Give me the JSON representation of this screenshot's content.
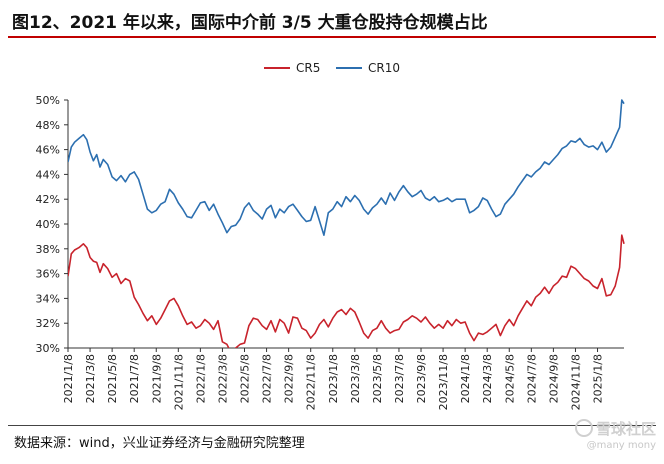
{
  "title": "图12、2021 年以来，国际中介前 3/5 大重仓股持仓规模占比",
  "source": "数据来源：wind，兴业证券经济与金融研究院整理",
  "watermark": {
    "logo_text": "雪球社区",
    "sub_text": "@many mony"
  },
  "colors": {
    "cr5": "#c8232c",
    "cr10": "#2c6fb0",
    "title_rule": "#c00000"
  },
  "chart_data": {
    "type": "line",
    "title": "",
    "xlabel": "",
    "ylabel": "",
    "ylim": [
      30,
      50
    ],
    "y_ticks": [
      "30%",
      "32%",
      "34%",
      "36%",
      "38%",
      "40%",
      "42%",
      "44%",
      "46%",
      "48%",
      "50%"
    ],
    "x_tick_labels": [
      "2021/1/8",
      "2021/3/8",
      "2021/5/8",
      "2021/7/8",
      "2021/9/8",
      "2021/11/8",
      "2022/1/8",
      "2022/3/8",
      "2022/5/8",
      "2022/7/8",
      "2022/9/8",
      "2022/11/8",
      "2023/1/8",
      "2023/3/8",
      "2023/5/8",
      "2023/7/8",
      "2023/9/8",
      "2023/11/8",
      "2024/1/8",
      "2024/3/8",
      "2024/5/8",
      "2024/7/8",
      "2024/9/8",
      "2024/11/8",
      "2025/1/8"
    ],
    "legend_position": "top-center",
    "grid": false,
    "series": [
      {
        "name": "CR5",
        "points": [
          [
            0,
            35.8
          ],
          [
            0.15,
            37.6
          ],
          [
            0.3,
            37.9
          ],
          [
            0.5,
            38.1
          ],
          [
            0.7,
            38.4
          ],
          [
            0.85,
            38.1
          ],
          [
            1,
            37.3
          ],
          [
            1.15,
            37.0
          ],
          [
            1.3,
            36.9
          ],
          [
            1.45,
            36.1
          ],
          [
            1.6,
            36.8
          ],
          [
            1.8,
            36.4
          ],
          [
            2,
            35.7
          ],
          [
            2.2,
            36.0
          ],
          [
            2.4,
            35.2
          ],
          [
            2.6,
            35.6
          ],
          [
            2.8,
            35.4
          ],
          [
            3,
            34.1
          ],
          [
            3.2,
            33.5
          ],
          [
            3.4,
            32.8
          ],
          [
            3.6,
            32.2
          ],
          [
            3.8,
            32.6
          ],
          [
            4,
            31.9
          ],
          [
            4.2,
            32.4
          ],
          [
            4.4,
            33.1
          ],
          [
            4.6,
            33.8
          ],
          [
            4.8,
            34.0
          ],
          [
            5,
            33.4
          ],
          [
            5.2,
            32.6
          ],
          [
            5.4,
            31.9
          ],
          [
            5.6,
            32.1
          ],
          [
            5.8,
            31.6
          ],
          [
            6,
            31.8
          ],
          [
            6.2,
            32.3
          ],
          [
            6.4,
            32.0
          ],
          [
            6.6,
            31.5
          ],
          [
            6.8,
            32.2
          ],
          [
            7,
            30.5
          ],
          [
            7.2,
            30.3
          ],
          [
            7.4,
            29.6
          ],
          [
            7.6,
            30.0
          ],
          [
            7.8,
            30.3
          ],
          [
            8,
            30.4
          ],
          [
            8.2,
            31.8
          ],
          [
            8.4,
            32.4
          ],
          [
            8.6,
            32.3
          ],
          [
            8.8,
            31.8
          ],
          [
            9,
            31.5
          ],
          [
            9.2,
            32.2
          ],
          [
            9.4,
            31.3
          ],
          [
            9.6,
            32.3
          ],
          [
            9.8,
            32.0
          ],
          [
            10,
            31.2
          ],
          [
            10.2,
            32.5
          ],
          [
            10.4,
            32.4
          ],
          [
            10.6,
            31.6
          ],
          [
            10.8,
            31.4
          ],
          [
            11,
            30.8
          ],
          [
            11.2,
            31.2
          ],
          [
            11.4,
            31.9
          ],
          [
            11.6,
            32.3
          ],
          [
            11.8,
            31.7
          ],
          [
            12,
            32.4
          ],
          [
            12.2,
            32.9
          ],
          [
            12.4,
            33.1
          ],
          [
            12.6,
            32.7
          ],
          [
            12.8,
            33.2
          ],
          [
            13,
            32.9
          ],
          [
            13.2,
            32.1
          ],
          [
            13.4,
            31.2
          ],
          [
            13.6,
            30.8
          ],
          [
            13.8,
            31.4
          ],
          [
            14,
            31.6
          ],
          [
            14.2,
            32.2
          ],
          [
            14.4,
            31.6
          ],
          [
            14.6,
            31.2
          ],
          [
            14.8,
            31.4
          ],
          [
            15,
            31.5
          ],
          [
            15.2,
            32.1
          ],
          [
            15.4,
            32.3
          ],
          [
            15.6,
            32.6
          ],
          [
            15.8,
            32.4
          ],
          [
            16,
            32.1
          ],
          [
            16.2,
            32.5
          ],
          [
            16.4,
            32.0
          ],
          [
            16.6,
            31.6
          ],
          [
            16.8,
            31.9
          ],
          [
            17,
            31.6
          ],
          [
            17.2,
            32.2
          ],
          [
            17.4,
            31.8
          ],
          [
            17.6,
            32.3
          ],
          [
            17.8,
            32.0
          ],
          [
            18,
            32.1
          ],
          [
            18.2,
            31.2
          ],
          [
            18.4,
            30.6
          ],
          [
            18.6,
            31.2
          ],
          [
            18.8,
            31.1
          ],
          [
            19,
            31.3
          ],
          [
            19.2,
            31.6
          ],
          [
            19.4,
            31.9
          ],
          [
            19.6,
            31.0
          ],
          [
            19.8,
            31.8
          ],
          [
            20,
            32.3
          ],
          [
            20.2,
            31.8
          ],
          [
            20.4,
            32.6
          ],
          [
            20.6,
            33.2
          ],
          [
            20.8,
            33.8
          ],
          [
            21,
            33.4
          ],
          [
            21.2,
            34.1
          ],
          [
            21.4,
            34.4
          ],
          [
            21.6,
            34.9
          ],
          [
            21.8,
            34.4
          ],
          [
            22,
            35.0
          ],
          [
            22.2,
            35.3
          ],
          [
            22.4,
            35.8
          ],
          [
            22.6,
            35.7
          ],
          [
            22.8,
            36.6
          ],
          [
            23,
            36.4
          ],
          [
            23.2,
            36.0
          ],
          [
            23.4,
            35.6
          ],
          [
            23.6,
            35.4
          ],
          [
            23.8,
            35.0
          ],
          [
            24,
            34.8
          ],
          [
            24.2,
            35.6
          ],
          [
            24.4,
            34.2
          ],
          [
            24.6,
            34.3
          ],
          [
            24.8,
            35.0
          ],
          [
            25,
            36.5
          ],
          [
            25.1,
            39.1
          ],
          [
            25.2,
            38.4
          ]
        ]
      },
      {
        "name": "CR10",
        "points": [
          [
            0,
            45.0
          ],
          [
            0.15,
            46.2
          ],
          [
            0.3,
            46.6
          ],
          [
            0.5,
            46.9
          ],
          [
            0.7,
            47.2
          ],
          [
            0.85,
            46.8
          ],
          [
            1,
            45.8
          ],
          [
            1.15,
            45.1
          ],
          [
            1.3,
            45.6
          ],
          [
            1.45,
            44.6
          ],
          [
            1.6,
            45.2
          ],
          [
            1.8,
            44.8
          ],
          [
            2,
            43.8
          ],
          [
            2.2,
            43.5
          ],
          [
            2.4,
            43.9
          ],
          [
            2.6,
            43.4
          ],
          [
            2.8,
            44.0
          ],
          [
            3,
            44.2
          ],
          [
            3.2,
            43.6
          ],
          [
            3.4,
            42.4
          ],
          [
            3.6,
            41.2
          ],
          [
            3.8,
            40.9
          ],
          [
            4,
            41.1
          ],
          [
            4.2,
            41.6
          ],
          [
            4.4,
            41.8
          ],
          [
            4.6,
            42.8
          ],
          [
            4.8,
            42.4
          ],
          [
            5,
            41.7
          ],
          [
            5.2,
            41.2
          ],
          [
            5.4,
            40.6
          ],
          [
            5.6,
            40.5
          ],
          [
            5.8,
            41.1
          ],
          [
            6,
            41.7
          ],
          [
            6.2,
            41.8
          ],
          [
            6.4,
            41.1
          ],
          [
            6.6,
            41.6
          ],
          [
            6.8,
            40.8
          ],
          [
            7,
            40.1
          ],
          [
            7.2,
            39.3
          ],
          [
            7.4,
            39.8
          ],
          [
            7.6,
            39.9
          ],
          [
            7.8,
            40.4
          ],
          [
            8,
            41.3
          ],
          [
            8.2,
            41.7
          ],
          [
            8.4,
            41.1
          ],
          [
            8.6,
            40.8
          ],
          [
            8.8,
            40.4
          ],
          [
            9,
            41.2
          ],
          [
            9.2,
            41.5
          ],
          [
            9.4,
            40.5
          ],
          [
            9.6,
            41.2
          ],
          [
            9.8,
            40.9
          ],
          [
            10,
            41.4
          ],
          [
            10.2,
            41.6
          ],
          [
            10.4,
            41.1
          ],
          [
            10.6,
            40.6
          ],
          [
            10.8,
            40.2
          ],
          [
            11,
            40.3
          ],
          [
            11.2,
            41.4
          ],
          [
            11.6,
            39.1
          ],
          [
            11.8,
            40.9
          ],
          [
            12,
            41.2
          ],
          [
            12.2,
            41.8
          ],
          [
            12.4,
            41.4
          ],
          [
            12.6,
            42.2
          ],
          [
            12.8,
            41.8
          ],
          [
            13,
            42.3
          ],
          [
            13.2,
            41.9
          ],
          [
            13.4,
            41.2
          ],
          [
            13.6,
            40.8
          ],
          [
            13.8,
            41.3
          ],
          [
            14,
            41.6
          ],
          [
            14.2,
            42.1
          ],
          [
            14.4,
            41.6
          ],
          [
            14.6,
            42.5
          ],
          [
            14.8,
            41.9
          ],
          [
            15,
            42.6
          ],
          [
            15.2,
            43.1
          ],
          [
            15.4,
            42.6
          ],
          [
            15.6,
            42.2
          ],
          [
            15.8,
            42.4
          ],
          [
            16,
            42.7
          ],
          [
            16.2,
            42.1
          ],
          [
            16.4,
            41.9
          ],
          [
            16.6,
            42.2
          ],
          [
            16.8,
            41.8
          ],
          [
            17,
            41.9
          ],
          [
            17.2,
            42.1
          ],
          [
            17.4,
            41.8
          ],
          [
            17.6,
            42.0
          ],
          [
            17.8,
            42.0
          ],
          [
            18,
            42.0
          ],
          [
            18.2,
            40.9
          ],
          [
            18.4,
            41.1
          ],
          [
            18.6,
            41.4
          ],
          [
            18.8,
            42.1
          ],
          [
            19,
            41.9
          ],
          [
            19.2,
            41.2
          ],
          [
            19.4,
            40.6
          ],
          [
            19.6,
            40.8
          ],
          [
            19.8,
            41.6
          ],
          [
            20,
            42.0
          ],
          [
            20.2,
            42.4
          ],
          [
            20.4,
            43.0
          ],
          [
            20.6,
            43.5
          ],
          [
            20.8,
            44.0
          ],
          [
            21,
            43.8
          ],
          [
            21.2,
            44.2
          ],
          [
            21.4,
            44.5
          ],
          [
            21.6,
            45.0
          ],
          [
            21.8,
            44.8
          ],
          [
            22,
            45.2
          ],
          [
            22.2,
            45.6
          ],
          [
            22.4,
            46.1
          ],
          [
            22.6,
            46.3
          ],
          [
            22.8,
            46.7
          ],
          [
            23,
            46.6
          ],
          [
            23.2,
            46.9
          ],
          [
            23.4,
            46.4
          ],
          [
            23.6,
            46.2
          ],
          [
            23.8,
            46.3
          ],
          [
            24,
            46.0
          ],
          [
            24.2,
            46.6
          ],
          [
            24.4,
            45.8
          ],
          [
            24.6,
            46.2
          ],
          [
            24.8,
            47.0
          ],
          [
            25,
            47.8
          ],
          [
            25.1,
            50.0
          ],
          [
            25.2,
            49.7
          ]
        ]
      }
    ]
  }
}
